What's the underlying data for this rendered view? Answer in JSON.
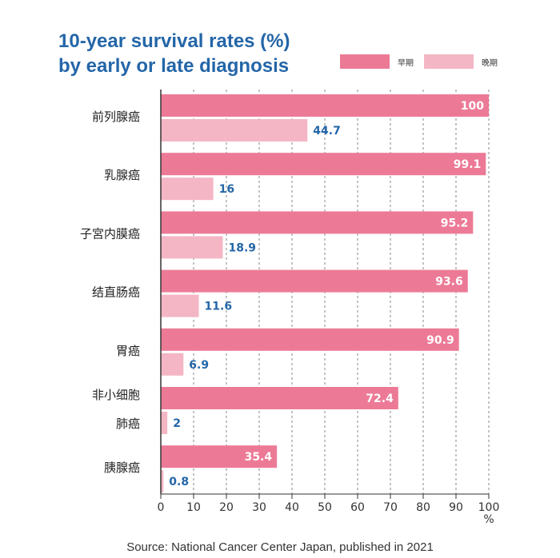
{
  "title_lines": [
    "10-year survival rates (%)",
    "by early or late diagnosis"
  ],
  "source": "Source: National Cancer Center Japan, published in 2021",
  "colors": {
    "early": "#ec7a96",
    "late": "#f4b6c4",
    "grid": "#8a8a8a",
    "axis": "#333333",
    "label_inside": "#ffffff",
    "label_outside": "#2466a8",
    "title": "#2466a8"
  },
  "chart_data": {
    "type": "bar",
    "orientation": "horizontal",
    "title": "10-year survival rates (%) by early or late diagnosis",
    "categories": [
      [
        "前列腺癌"
      ],
      [
        "乳腺癌"
      ],
      [
        "子宮内膜癌"
      ],
      [
        "结直肠癌"
      ],
      [
        "胃癌"
      ],
      [
        "非小细胞",
        "肺癌"
      ],
      [
        "胰腺癌"
      ]
    ],
    "series": [
      {
        "name": "早期",
        "values": [
          100,
          99.1,
          95.2,
          93.6,
          90.9,
          72.4,
          35.4
        ]
      },
      {
        "name": "晚期",
        "values": [
          44.7,
          16,
          18.9,
          11.6,
          6.9,
          2,
          0.8
        ]
      }
    ],
    "data_labels": [
      [
        "100",
        "99.1",
        "95.2",
        "93.6",
        "90.9",
        "72.4",
        "35.4"
      ],
      [
        "44.7",
        "16",
        "18.9",
        "11.6",
        "6.9",
        "2",
        "0.8"
      ]
    ],
    "xlim": [
      0,
      100
    ],
    "xticks": [
      "0",
      "10",
      "20",
      "30",
      "40",
      "50",
      "60",
      "70",
      "80",
      "90",
      "100"
    ],
    "xunit": "%",
    "grid": "vertical dashed",
    "legend": "top-right"
  }
}
